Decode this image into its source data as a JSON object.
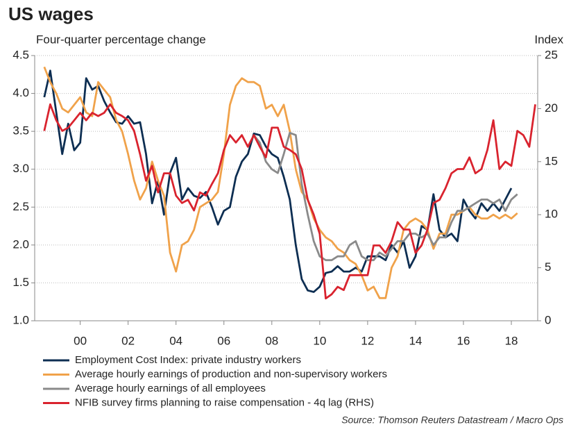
{
  "chart_data": {
    "type": "line",
    "title": "US wages",
    "ylabel": "Four-quarter percentage change",
    "y2label": "Index",
    "source": "Source: Thomson Reuters Datastream / Macro Ops",
    "x": [
      1998.5,
      1998.75,
      1999,
      1999.25,
      1999.5,
      1999.75,
      2000,
      2000.25,
      2000.5,
      2000.75,
      2001,
      2001.25,
      2001.5,
      2001.75,
      2002,
      2002.25,
      2002.5,
      2002.75,
      2003,
      2003.25,
      2003.5,
      2003.75,
      2004,
      2004.25,
      2004.5,
      2004.75,
      2005,
      2005.25,
      2005.5,
      2005.75,
      2006,
      2006.25,
      2006.5,
      2006.75,
      2007,
      2007.25,
      2007.5,
      2007.75,
      2008,
      2008.25,
      2008.5,
      2008.75,
      2009,
      2009.25,
      2009.5,
      2009.75,
      2010,
      2010.25,
      2010.5,
      2010.75,
      2011,
      2011.25,
      2011.5,
      2011.75,
      2012,
      2012.25,
      2012.5,
      2012.75,
      2013,
      2013.25,
      2013.5,
      2013.75,
      2014,
      2014.25,
      2014.5,
      2014.75,
      2015,
      2015.25,
      2015.5,
      2015.75,
      2016,
      2016.25,
      2016.5,
      2016.75,
      2017,
      2017.25,
      2017.5,
      2017.75,
      2018,
      2018.25,
      2018.5,
      2018.75,
      2019
    ],
    "xlim": [
      1998.1,
      2019.1
    ],
    "xticks": [
      {
        "value": 2000,
        "label": "00"
      },
      {
        "value": 2002,
        "label": "02"
      },
      {
        "value": 2004,
        "label": "04"
      },
      {
        "value": 2006,
        "label": "06"
      },
      {
        "value": 2008,
        "label": "08"
      },
      {
        "value": 2010,
        "label": "10"
      },
      {
        "value": 2012,
        "label": "12"
      },
      {
        "value": 2014,
        "label": "14"
      },
      {
        "value": 2016,
        "label": "16"
      },
      {
        "value": 2018,
        "label": "18"
      }
    ],
    "ylim": [
      1,
      4.5
    ],
    "yticks": [
      {
        "value": 1,
        "label": "1.0"
      },
      1.5,
      {
        "value": 2,
        "label": "2.0"
      },
      2.5,
      {
        "value": 3,
        "label": "3.0"
      },
      3.5,
      {
        "value": 4,
        "label": "4.0"
      },
      4.5
    ],
    "y2lim": [
      0,
      25
    ],
    "y2ticks": [
      0,
      5,
      10,
      15,
      20,
      25
    ],
    "grid": true,
    "series": [
      {
        "name": "Employment Cost Index: private industry workers",
        "color": "#0d2e52",
        "values": [
          3.95,
          4.3,
          3.75,
          3.2,
          3.6,
          3.25,
          3.35,
          4.2,
          4.05,
          4.1,
          3.9,
          3.75,
          3.62,
          3.6,
          3.7,
          3.6,
          3.62,
          3.2,
          2.55,
          2.85,
          2.4,
          2.95,
          3.15,
          2.6,
          2.75,
          2.65,
          2.62,
          2.7,
          2.5,
          2.27,
          2.45,
          2.5,
          2.9,
          3.1,
          3.2,
          3.47,
          3.45,
          3.3,
          3.2,
          3.15,
          2.9,
          2.6,
          2.0,
          1.55,
          1.4,
          1.38,
          1.45,
          1.63,
          1.65,
          1.72,
          1.65,
          1.65,
          1.7,
          1.65,
          1.85,
          1.85,
          1.85,
          1.8,
          2.0,
          1.9,
          2.05,
          1.7,
          1.85,
          2.25,
          2.2,
          2.67,
          2.2,
          2.1,
          2.15,
          2.05,
          2.6,
          2.45,
          2.35,
          2.55,
          2.45,
          2.55,
          2.45,
          2.6,
          2.75,
          null,
          null,
          null,
          null
        ]
      },
      {
        "name": "Average hourly earnings of production and non-supervisory workers",
        "color": "#f0a24a",
        "values": [
          4.35,
          4.15,
          4.0,
          3.8,
          3.75,
          3.85,
          3.95,
          3.75,
          3.7,
          4.15,
          4.05,
          3.95,
          3.65,
          3.5,
          3.2,
          2.85,
          2.6,
          2.75,
          3.1,
          2.85,
          2.65,
          1.9,
          1.65,
          2.0,
          2.05,
          2.2,
          2.5,
          2.55,
          2.6,
          2.7,
          3.2,
          3.85,
          4.1,
          4.2,
          4.15,
          4.15,
          4.1,
          3.8,
          3.85,
          3.7,
          3.85,
          3.5,
          3.0,
          2.7,
          2.6,
          2.35,
          2.2,
          2.1,
          2.05,
          1.95,
          1.9,
          1.8,
          1.75,
          1.6,
          1.4,
          1.45,
          1.3,
          1.3,
          1.7,
          1.85,
          2.2,
          2.3,
          2.35,
          2.3,
          2.2,
          1.95,
          2.15,
          2.15,
          2.4,
          2.4,
          2.45,
          2.5,
          2.4,
          2.35,
          2.35,
          2.4,
          2.35,
          2.4,
          2.35,
          2.42,
          null,
          null,
          null
        ]
      },
      {
        "name": "Average hourly earnings of all employees",
        "color": "#8a8a8a",
        "values": [
          null,
          null,
          null,
          null,
          null,
          null,
          null,
          null,
          null,
          null,
          null,
          null,
          null,
          null,
          null,
          null,
          null,
          null,
          null,
          null,
          null,
          null,
          null,
          null,
          null,
          null,
          null,
          null,
          null,
          null,
          null,
          null,
          null,
          null,
          null,
          3.45,
          3.35,
          3.1,
          3.0,
          2.95,
          3.2,
          3.48,
          3.45,
          2.8,
          2.4,
          2.05,
          1.85,
          1.8,
          1.8,
          1.85,
          1.85,
          2.0,
          2.05,
          1.85,
          1.8,
          1.8,
          1.9,
          1.85,
          1.95,
          2.05,
          2.05,
          2.15,
          2.15,
          2.1,
          2.15,
          2.0,
          2.1,
          2.1,
          2.3,
          2.45,
          2.45,
          2.5,
          2.55,
          2.6,
          2.6,
          2.55,
          2.6,
          2.45,
          2.6,
          2.67,
          null,
          null,
          null
        ]
      },
      {
        "name": "NFIB survey firms planning to raise compensation - 4q lag (RHS)",
        "color": "#d9232e",
        "axis": "y2",
        "values": [
          17.9,
          20.4,
          18.9,
          17.9,
          18.2,
          18.9,
          19.6,
          18.9,
          19.6,
          19.3,
          19.6,
          20.4,
          19.6,
          19.3,
          18.9,
          17.9,
          15.7,
          13.2,
          14.6,
          12.1,
          13.9,
          13.9,
          11.8,
          11.1,
          11.4,
          10.4,
          12.1,
          11.8,
          12.9,
          13.9,
          16.1,
          17.5,
          16.8,
          17.5,
          16.4,
          17.5,
          16.4,
          15.4,
          18.2,
          18.2,
          16.4,
          16.1,
          15.7,
          14.3,
          11.4,
          10.0,
          8.2,
          2.1,
          2.5,
          3.2,
          2.9,
          4.3,
          4.3,
          4.3,
          4.3,
          7.1,
          7.1,
          6.4,
          7.5,
          9.3,
          8.6,
          8.6,
          6.4,
          7.1,
          8.6,
          11.1,
          11.4,
          12.5,
          13.9,
          14.3,
          14.3,
          15.4,
          13.9,
          14.3,
          16.1,
          18.9,
          14.3,
          15.0,
          14.6,
          17.9,
          17.5,
          16.4,
          20.4
        ]
      }
    ]
  }
}
